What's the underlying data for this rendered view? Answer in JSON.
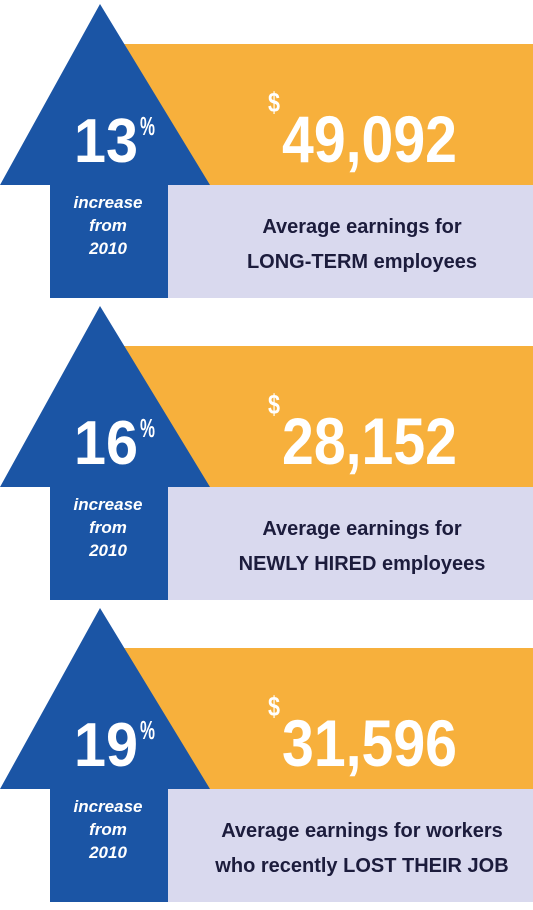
{
  "panels": [
    {
      "percent": "13",
      "percent_sign": "%",
      "note": [
        "increase",
        "from",
        "2010"
      ],
      "currency": "$",
      "amount": "49,092",
      "description": [
        "Average earnings for",
        "LONG-TERM employees"
      ]
    },
    {
      "percent": "16",
      "percent_sign": "%",
      "note": [
        "increase",
        "from",
        "2010"
      ],
      "currency": "$",
      "amount": "28,152",
      "description": [
        "Average earnings for",
        "NEWLY HIRED employees"
      ]
    },
    {
      "percent": "19",
      "percent_sign": "%",
      "note": [
        "increase",
        "from",
        "2010"
      ],
      "currency": "$",
      "amount": "31,596",
      "description": [
        "Average earnings for workers",
        "who recently LOST THEIR JOB"
      ]
    }
  ]
}
